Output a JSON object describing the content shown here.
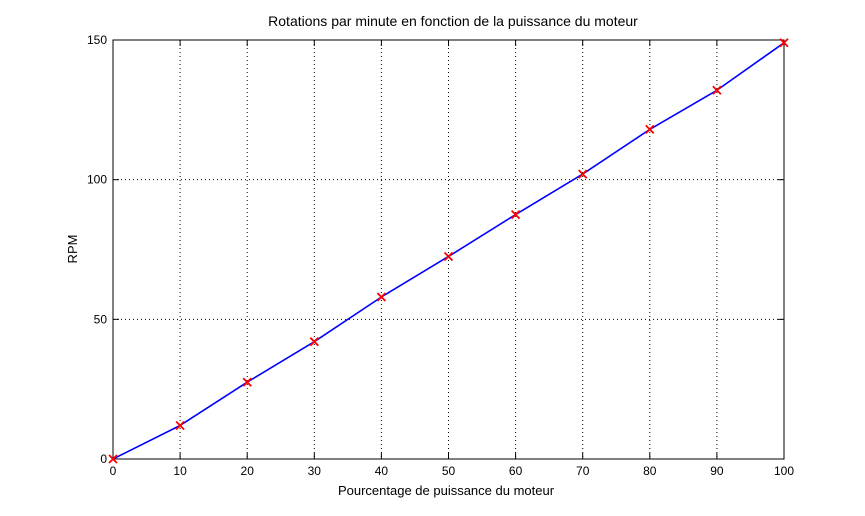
{
  "chart_data": {
    "type": "line",
    "title": "Rotations par minute en fonction de la puissance du moteur",
    "xlabel": "Pourcentage de puissance du moteur",
    "ylabel": "RPM",
    "xlim": [
      0,
      100
    ],
    "ylim": [
      0,
      150
    ],
    "x_ticks": [
      0,
      10,
      20,
      30,
      40,
      50,
      60,
      70,
      80,
      90,
      100
    ],
    "y_ticks": [
      0,
      50,
      100,
      150
    ],
    "grid": true,
    "grid_style": "dotted",
    "series": [
      {
        "x": [
          0,
          10,
          20,
          30,
          40,
          50,
          60,
          70,
          80,
          90,
          100
        ],
        "values": [
          0,
          12,
          27.5,
          42,
          58,
          72.5,
          87.5,
          102,
          118,
          132,
          149
        ],
        "line_color": "#0000ff",
        "marker": "x",
        "marker_color": "#ff0000"
      }
    ]
  }
}
